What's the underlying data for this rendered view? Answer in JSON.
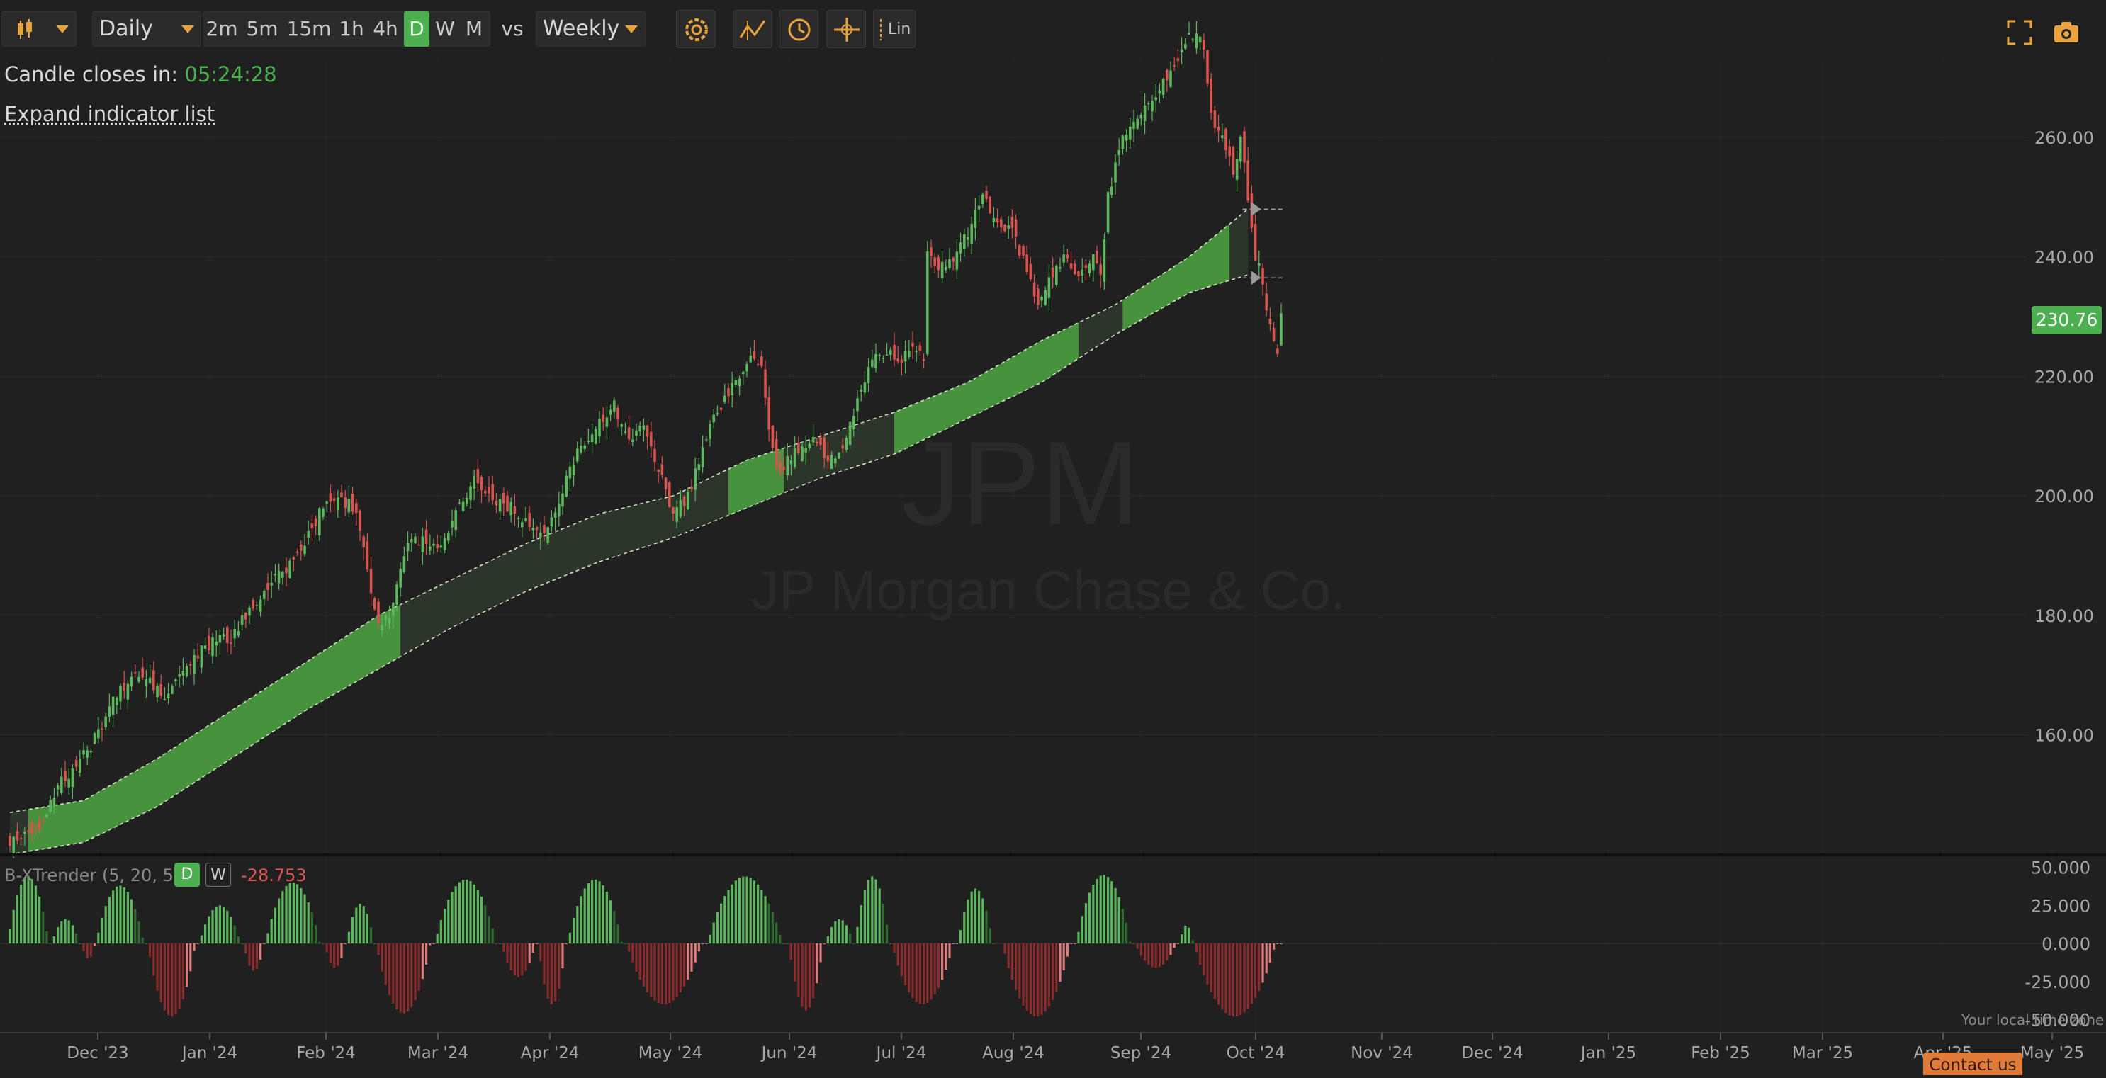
{
  "toolbar": {
    "chart_type_icon": "candlestick-icon",
    "interval": "Daily",
    "timeframes": [
      "2m",
      "5m",
      "15m",
      "1h",
      "4h",
      "D",
      "W",
      "M"
    ],
    "active_timeframe": "D",
    "vs_label": "vs",
    "compare_interval": "Weekly",
    "tools": [
      "gear-icon",
      "indicator-icon",
      "clock-icon",
      "crosshair-icon"
    ],
    "scale_label": "Lin",
    "right_icons": [
      "fullscreen-icon",
      "camera-icon"
    ]
  },
  "info": {
    "candle_closes_label": "Candle closes in:",
    "countdown": "05:24:28",
    "expand_label": "Expand indicator list"
  },
  "watermark": {
    "ticker": "JPM",
    "company": "JP Morgan Chase & Co."
  },
  "price_axis": {
    "ticks": [
      "260.00",
      "240.00",
      "220.00",
      "200.00",
      "180.00",
      "160.00"
    ]
  },
  "last_price": "230.76",
  "indicator": {
    "label": "B-XTrender (5, 20, 5)",
    "tag_d": "D",
    "tag_w": "W",
    "value": "-28.753",
    "ticks": [
      "50.000",
      "25.000",
      "0.000",
      "-25.000",
      "-50.000"
    ]
  },
  "time_axis": {
    "labels": [
      "Dec '23",
      "Jan '24",
      "Feb '24",
      "Mar '24",
      "Apr '24",
      "May '24",
      "Jun '24",
      "Jul '24",
      "Aug '24",
      "Sep '24",
      "Oct '24",
      "Nov '24",
      "Dec '24",
      "Jan '25",
      "Feb '25",
      "Mar '25",
      "Apr '25",
      "May '25"
    ]
  },
  "timezone_note": "Your local time zone",
  "contact_label": "Contact us",
  "colors": {
    "background": "#202020",
    "up": "#5cb85c",
    "down": "#d9534f",
    "band_green": "#4a9a3f",
    "band_dark": "#2f3a2c",
    "accent": "#e8a33d"
  },
  "chart_data": {
    "type": "candlestick",
    "symbol": "JPM",
    "interval": "Daily",
    "ylim": [
      140,
      280
    ],
    "price_path": [
      [
        0,
        142
      ],
      [
        8,
        145
      ],
      [
        14,
        152
      ],
      [
        22,
        158
      ],
      [
        28,
        166
      ],
      [
        34,
        170
      ],
      [
        38,
        169
      ],
      [
        42,
        166
      ],
      [
        46,
        170
      ],
      [
        52,
        174
      ],
      [
        56,
        176
      ],
      [
        60,
        176
      ],
      [
        66,
        182
      ],
      [
        72,
        186
      ],
      [
        78,
        190
      ],
      [
        84,
        197
      ],
      [
        88,
        200
      ],
      [
        94,
        198
      ],
      [
        96,
        192
      ],
      [
        98,
        184
      ],
      [
        100,
        179
      ],
      [
        103,
        180
      ],
      [
        108,
        192
      ],
      [
        112,
        193
      ],
      [
        116,
        191
      ],
      [
        120,
        196
      ],
      [
        126,
        203
      ],
      [
        130,
        200
      ],
      [
        136,
        198
      ],
      [
        140,
        196
      ],
      [
        144,
        193
      ],
      [
        148,
        197
      ],
      [
        154,
        208
      ],
      [
        160,
        212
      ],
      [
        164,
        215
      ],
      [
        168,
        210
      ],
      [
        172,
        211
      ],
      [
        176,
        205
      ],
      [
        180,
        197
      ],
      [
        184,
        200
      ],
      [
        190,
        212
      ],
      [
        196,
        218
      ],
      [
        200,
        223
      ],
      [
        204,
        221
      ],
      [
        206,
        212
      ],
      [
        208,
        204
      ],
      [
        210,
        205
      ],
      [
        214,
        208
      ],
      [
        218,
        210
      ],
      [
        222,
        206
      ],
      [
        226,
        207
      ],
      [
        230,
        216
      ],
      [
        234,
        223
      ],
      [
        238,
        224
      ],
      [
        242,
        223
      ],
      [
        246,
        225
      ],
      [
        248,
        222
      ],
      [
        249,
        240
      ],
      [
        252,
        238
      ],
      [
        256,
        240
      ],
      [
        260,
        244
      ],
      [
        264,
        250
      ],
      [
        268,
        246
      ],
      [
        272,
        244
      ],
      [
        276,
        238
      ],
      [
        279,
        231
      ],
      [
        282,
        236
      ],
      [
        286,
        240
      ],
      [
        290,
        237
      ],
      [
        294,
        240
      ],
      [
        296,
        237
      ],
      [
        298,
        250
      ],
      [
        302,
        260
      ],
      [
        306,
        264
      ],
      [
        310,
        266
      ],
      [
        314,
        270
      ],
      [
        318,
        275
      ],
      [
        322,
        278
      ],
      [
        324,
        275
      ],
      [
        326,
        264
      ],
      [
        330,
        258
      ],
      [
        332,
        254
      ],
      [
        334,
        260
      ],
      [
        336,
        250
      ],
      [
        338,
        240
      ],
      [
        340,
        236
      ],
      [
        342,
        228
      ],
      [
        344,
        224
      ],
      [
        345,
        231
      ]
    ],
    "band": {
      "upper": [
        [
          0,
          147
        ],
        [
          20,
          149
        ],
        [
          40,
          156
        ],
        [
          60,
          164
        ],
        [
          80,
          172
        ],
        [
          100,
          180
        ],
        [
          120,
          186
        ],
        [
          140,
          192
        ],
        [
          160,
          197
        ],
        [
          180,
          200
        ],
        [
          200,
          206
        ],
        [
          220,
          210
        ],
        [
          240,
          214
        ],
        [
          260,
          219
        ],
        [
          280,
          226
        ],
        [
          300,
          232
        ],
        [
          320,
          240
        ],
        [
          336,
          248
        ]
      ],
      "lower": [
        [
          0,
          140
        ],
        [
          20,
          142
        ],
        [
          40,
          148
        ],
        [
          60,
          156
        ],
        [
          80,
          164
        ],
        [
          100,
          171
        ],
        [
          120,
          178
        ],
        [
          140,
          184
        ],
        [
          160,
          189
        ],
        [
          180,
          193
        ],
        [
          200,
          198
        ],
        [
          220,
          203
        ],
        [
          240,
          207
        ],
        [
          260,
          213
        ],
        [
          280,
          219
        ],
        [
          300,
          227
        ],
        [
          320,
          234
        ],
        [
          336,
          237
        ]
      ],
      "segments": [
        {
          "from": 0,
          "to": 5,
          "state": "dark"
        },
        {
          "from": 5,
          "to": 106,
          "state": "green"
        },
        {
          "from": 106,
          "to": 195,
          "state": "dark"
        },
        {
          "from": 195,
          "to": 210,
          "state": "green"
        },
        {
          "from": 210,
          "to": 240,
          "state": "dark"
        },
        {
          "from": 240,
          "to": 290,
          "state": "green"
        },
        {
          "from": 290,
          "to": 302,
          "state": "dark"
        },
        {
          "from": 302,
          "to": 331,
          "state": "green"
        },
        {
          "from": 331,
          "to": 336,
          "state": "dark"
        }
      ]
    },
    "markers": [
      {
        "x": 338,
        "y": 248
      },
      {
        "x": 338,
        "y": 236.5
      }
    ],
    "oscillator": {
      "ylim": [
        -50,
        50
      ],
      "waves": [
        {
          "from": 0,
          "to": 12,
          "peak": 44
        },
        {
          "from": 12,
          "to": 20,
          "peak": 16
        },
        {
          "from": 20,
          "to": 24,
          "peak": -10
        },
        {
          "from": 24,
          "to": 38,
          "peak": 38
        },
        {
          "from": 38,
          "to": 52,
          "peak": -48
        },
        {
          "from": 52,
          "to": 64,
          "peak": 25
        },
        {
          "from": 64,
          "to": 70,
          "peak": -18
        },
        {
          "from": 70,
          "to": 86,
          "peak": 40
        },
        {
          "from": 86,
          "to": 92,
          "peak": -16
        },
        {
          "from": 92,
          "to": 100,
          "peak": 26
        },
        {
          "from": 100,
          "to": 116,
          "peak": -46
        },
        {
          "from": 116,
          "to": 134,
          "peak": 42
        },
        {
          "from": 134,
          "to": 144,
          "peak": -22
        },
        {
          "from": 144,
          "to": 152,
          "peak": -40
        },
        {
          "from": 152,
          "to": 168,
          "peak": 42
        },
        {
          "from": 168,
          "to": 190,
          "peak": -40
        },
        {
          "from": 190,
          "to": 212,
          "peak": 44
        },
        {
          "from": 212,
          "to": 222,
          "peak": -44
        },
        {
          "from": 222,
          "to": 230,
          "peak": 16
        },
        {
          "from": 230,
          "to": 240,
          "peak": 44
        },
        {
          "from": 240,
          "to": 258,
          "peak": -40
        },
        {
          "from": 258,
          "to": 268,
          "peak": 36
        },
        {
          "from": 270,
          "to": 290,
          "peak": -48
        },
        {
          "from": 290,
          "to": 306,
          "peak": 45
        },
        {
          "from": 306,
          "to": 318,
          "peak": -16
        },
        {
          "from": 318,
          "to": 322,
          "peak": 12
        },
        {
          "from": 322,
          "to": 346,
          "peak": -48
        }
      ]
    }
  }
}
